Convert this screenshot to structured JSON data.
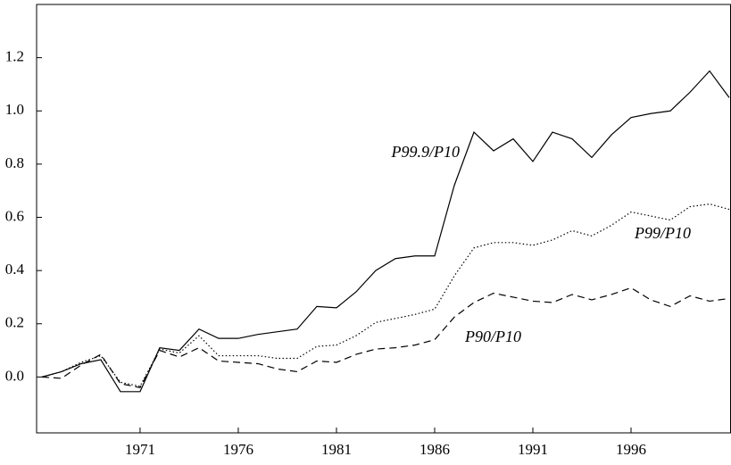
{
  "chart_data": {
    "type": "line",
    "x": [
      1966,
      1967,
      1968,
      1969,
      1970,
      1971,
      1972,
      1973,
      1974,
      1975,
      1976,
      1977,
      1978,
      1979,
      1980,
      1981,
      1982,
      1983,
      1984,
      1985,
      1986,
      1987,
      1988,
      1989,
      1990,
      1991,
      1992,
      1993,
      1994,
      1995,
      1996,
      1997,
      1998,
      1999,
      2000,
      2001
    ],
    "series": [
      {
        "name": "P99.9/P10",
        "color": "#000000",
        "dash": "solid",
        "values": [
          0.0,
          0.02,
          0.05,
          0.065,
          -0.055,
          -0.055,
          0.11,
          0.1,
          0.18,
          0.145,
          0.145,
          0.16,
          0.17,
          0.18,
          0.265,
          0.26,
          0.32,
          0.4,
          0.445,
          0.455,
          0.455,
          0.72,
          0.92,
          0.85,
          0.895,
          0.81,
          0.92,
          0.895,
          0.825,
          0.91,
          0.975,
          0.99,
          1.0,
          1.07,
          1.15,
          1.05
        ]
      },
      {
        "name": "P99/P10",
        "color": "#000000",
        "dash": "dotted",
        "values": [
          0.0,
          0.02,
          0.055,
          0.08,
          -0.02,
          -0.035,
          0.105,
          0.09,
          0.155,
          0.08,
          0.08,
          0.08,
          0.07,
          0.07,
          0.115,
          0.12,
          0.155,
          0.205,
          0.22,
          0.235,
          0.255,
          0.38,
          0.485,
          0.505,
          0.505,
          0.495,
          0.515,
          0.55,
          0.53,
          0.57,
          0.62,
          0.605,
          0.59,
          0.64,
          0.65,
          0.63
        ]
      },
      {
        "name": "P90/P10",
        "color": "#000000",
        "dash": "dashed",
        "values": [
          0.0,
          -0.005,
          0.045,
          0.085,
          -0.025,
          -0.04,
          0.1,
          0.075,
          0.11,
          0.06,
          0.055,
          0.05,
          0.03,
          0.02,
          0.06,
          0.055,
          0.085,
          0.105,
          0.11,
          0.12,
          0.14,
          0.225,
          0.28,
          0.315,
          0.3,
          0.285,
          0.28,
          0.31,
          0.29,
          0.31,
          0.335,
          0.29,
          0.265,
          0.305,
          0.285,
          0.295
        ]
      }
    ],
    "xlim": [
      1965.73,
      2001.09
    ],
    "xticks": [
      1971,
      1976,
      1981,
      1986,
      1991,
      1996
    ],
    "ylim": [
      -0.21,
      1.4
    ],
    "yticks": [
      {
        "value": 0,
        "label": "0.0"
      },
      0.2,
      0.4,
      0.6,
      0.8,
      {
        "value": 1,
        "label": "1.0"
      },
      1.2
    ],
    "grid": false
  }
}
